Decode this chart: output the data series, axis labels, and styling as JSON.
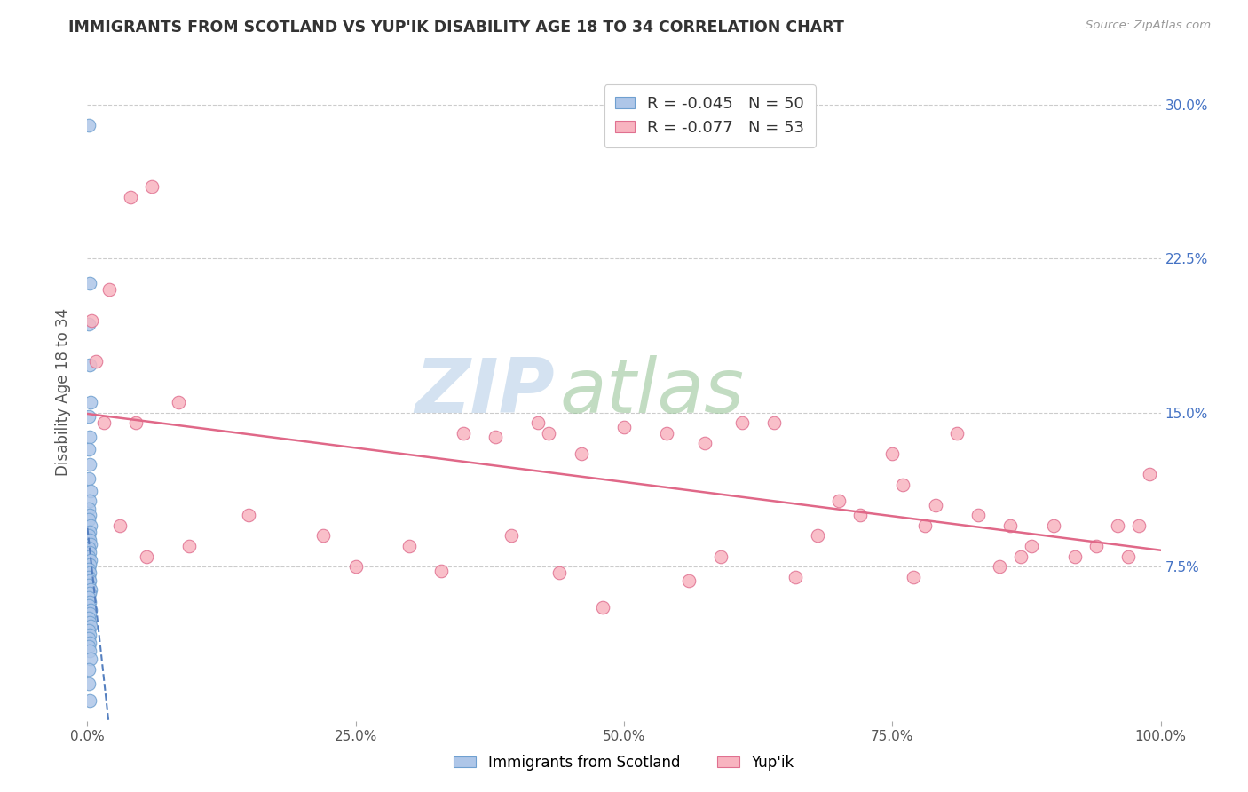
{
  "title": "IMMIGRANTS FROM SCOTLAND VS YUP'IK DISABILITY AGE 18 TO 34 CORRELATION CHART",
  "source_text": "Source: ZipAtlas.com",
  "ylabel": "Disability Age 18 to 34",
  "legend1_label": "Immigrants from Scotland",
  "legend2_label": "Yup'ik",
  "r1": -0.045,
  "n1": 50,
  "r2": -0.077,
  "n2": 53,
  "color1_face": "#aec6e8",
  "color1_edge": "#6fa0d0",
  "color2_face": "#f8b4c0",
  "color2_edge": "#e07090",
  "line1_color": "#5580c0",
  "line2_color": "#e06888",
  "xlim": [
    0.0,
    1.0
  ],
  "ylim": [
    0.0,
    0.32
  ],
  "xticks": [
    0.0,
    0.25,
    0.5,
    0.75,
    1.0
  ],
  "xtick_labels": [
    "0.0%",
    "25.0%",
    "50.0%",
    "75.0%",
    "100.0%"
  ],
  "yticks": [
    0.075,
    0.15,
    0.225,
    0.3
  ],
  "ytick_labels": [
    "7.5%",
    "15.0%",
    "22.5%",
    "30.0%"
  ],
  "scotland_x": [
    0.001,
    0.002,
    0.001,
    0.002,
    0.003,
    0.001,
    0.002,
    0.001,
    0.002,
    0.001,
    0.003,
    0.002,
    0.001,
    0.002,
    0.001,
    0.003,
    0.002,
    0.001,
    0.002,
    0.003,
    0.001,
    0.002,
    0.001,
    0.003,
    0.002,
    0.001,
    0.002,
    0.001,
    0.002,
    0.001,
    0.003,
    0.002,
    0.001,
    0.002,
    0.001,
    0.003,
    0.002,
    0.001,
    0.002,
    0.003,
    0.001,
    0.002,
    0.001,
    0.002,
    0.001,
    0.002,
    0.003,
    0.001,
    0.001,
    0.002
  ],
  "scotland_y": [
    0.29,
    0.213,
    0.193,
    0.173,
    0.155,
    0.148,
    0.138,
    0.132,
    0.125,
    0.118,
    0.112,
    0.107,
    0.103,
    0.1,
    0.098,
    0.095,
    0.092,
    0.09,
    0.088,
    0.086,
    0.084,
    0.082,
    0.08,
    0.078,
    0.076,
    0.074,
    0.072,
    0.07,
    0.068,
    0.066,
    0.064,
    0.062,
    0.06,
    0.058,
    0.056,
    0.054,
    0.052,
    0.05,
    0.048,
    0.046,
    0.044,
    0.042,
    0.04,
    0.038,
    0.036,
    0.034,
    0.03,
    0.025,
    0.018,
    0.01
  ],
  "yupik_x": [
    0.004,
    0.06,
    0.008,
    0.02,
    0.015,
    0.085,
    0.045,
    0.35,
    0.38,
    0.42,
    0.46,
    0.5,
    0.54,
    0.575,
    0.61,
    0.64,
    0.43,
    0.7,
    0.72,
    0.75,
    0.76,
    0.79,
    0.81,
    0.83,
    0.86,
    0.88,
    0.9,
    0.92,
    0.94,
    0.96,
    0.97,
    0.98,
    0.99,
    0.87,
    0.78,
    0.68,
    0.59,
    0.48,
    0.395,
    0.3,
    0.22,
    0.15,
    0.095,
    0.055,
    0.03,
    0.25,
    0.33,
    0.44,
    0.56,
    0.66,
    0.77,
    0.85,
    0.04
  ],
  "yupik_y": [
    0.195,
    0.26,
    0.175,
    0.21,
    0.145,
    0.155,
    0.145,
    0.14,
    0.138,
    0.145,
    0.13,
    0.143,
    0.14,
    0.135,
    0.145,
    0.145,
    0.14,
    0.107,
    0.1,
    0.13,
    0.115,
    0.105,
    0.14,
    0.1,
    0.095,
    0.085,
    0.095,
    0.08,
    0.085,
    0.095,
    0.08,
    0.095,
    0.12,
    0.08,
    0.095,
    0.09,
    0.08,
    0.055,
    0.09,
    0.085,
    0.09,
    0.1,
    0.085,
    0.08,
    0.095,
    0.075,
    0.073,
    0.072,
    0.068,
    0.07,
    0.07,
    0.075,
    0.255
  ]
}
